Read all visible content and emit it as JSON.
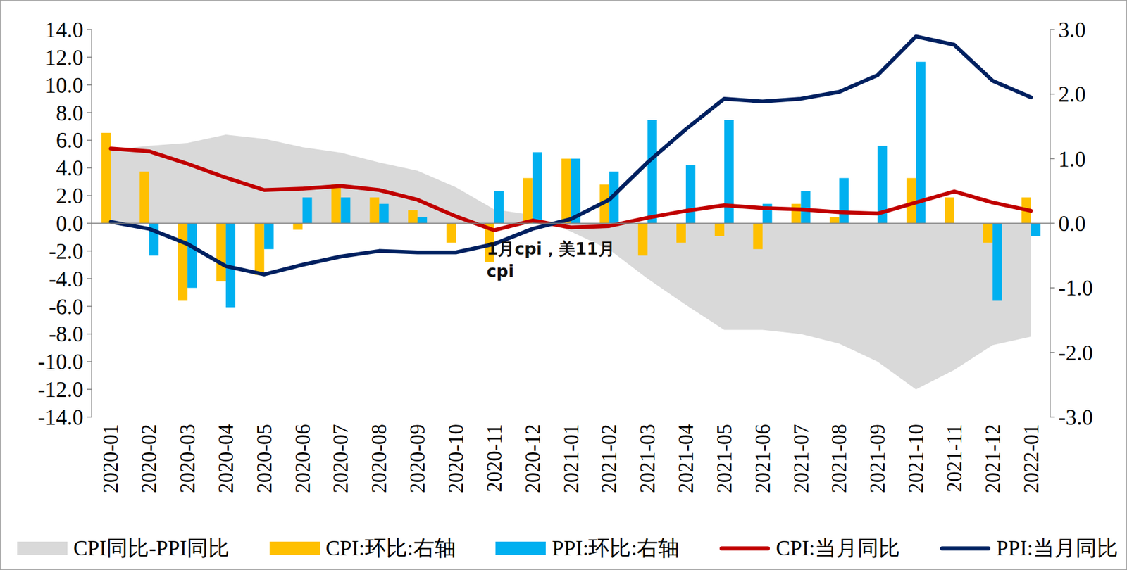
{
  "chart_data": {
    "type": "combo",
    "categories": [
      "2020-01",
      "2020-02",
      "2020-03",
      "2020-04",
      "2020-05",
      "2020-06",
      "2020-07",
      "2020-08",
      "2020-09",
      "2020-10",
      "2020-11",
      "2020-12",
      "2021-01",
      "2021-02",
      "2021-03",
      "2021-04",
      "2021-05",
      "2021-06",
      "2021-07",
      "2021-08",
      "2021-09",
      "2021-10",
      "2021-11",
      "2021-12",
      "2022-01"
    ],
    "series": [
      {
        "name": "CPI同比-PPI同比",
        "type": "area",
        "color": "#d9d9d9",
        "axis": "y",
        "values": [
          5.3,
          5.6,
          5.8,
          6.4,
          6.1,
          5.5,
          5.1,
          4.4,
          3.8,
          2.6,
          1.0,
          0.6,
          -0.6,
          -1.9,
          -4.0,
          -5.9,
          -7.7,
          -7.7,
          -8.0,
          -8.7,
          -10.0,
          -12.0,
          -10.6,
          -8.8,
          -8.2
        ]
      },
      {
        "name": "CPI:环比:右轴",
        "type": "bar",
        "color": "#ffc000",
        "axis": "y2",
        "values": [
          1.4,
          0.8,
          -1.2,
          -0.9,
          -0.8,
          -0.1,
          0.6,
          0.4,
          0.2,
          -0.3,
          -0.6,
          0.7,
          1.0,
          0.6,
          -0.5,
          -0.3,
          -0.2,
          -0.4,
          0.3,
          0.1,
          0.0,
          0.7,
          0.4,
          -0.3,
          0.4
        ]
      },
      {
        "name": "PPI:环比:右轴",
        "type": "bar",
        "color": "#00b0f0",
        "axis": "y2",
        "values": [
          0.0,
          -0.5,
          -1.0,
          -1.3,
          -0.4,
          0.4,
          0.4,
          0.3,
          0.1,
          0.0,
          0.5,
          1.1,
          1.0,
          0.8,
          1.6,
          0.9,
          1.6,
          0.3,
          0.5,
          0.7,
          1.2,
          2.5,
          0.0,
          -1.2,
          -0.2
        ]
      },
      {
        "name": "CPI:当月同比",
        "type": "line",
        "color": "#c00000",
        "axis": "y",
        "values": [
          5.4,
          5.2,
          4.3,
          3.3,
          2.4,
          2.5,
          2.7,
          2.4,
          1.7,
          0.5,
          -0.5,
          0.2,
          -0.3,
          -0.2,
          0.4,
          0.9,
          1.3,
          1.1,
          1.0,
          0.8,
          0.7,
          1.5,
          2.3,
          1.5,
          0.9
        ]
      },
      {
        "name": "PPI:当月同比",
        "type": "line",
        "color": "#002060",
        "axis": "y",
        "values": [
          0.1,
          -0.4,
          -1.5,
          -3.1,
          -3.7,
          -3.0,
          -2.4,
          -2.0,
          -2.1,
          -2.1,
          -1.5,
          -0.4,
          0.3,
          1.7,
          4.4,
          6.8,
          9.0,
          8.8,
          9.0,
          9.5,
          10.7,
          13.5,
          12.9,
          10.3,
          9.1
        ]
      }
    ],
    "ylim": [
      -14,
      14
    ],
    "yticks": [
      {
        "value": -14,
        "label": "-14.0"
      },
      {
        "value": -12,
        "label": "-12.0"
      },
      {
        "value": -10,
        "label": "-10.0"
      },
      {
        "value": -8,
        "label": "-8.0"
      },
      {
        "value": -6,
        "label": "-6.0"
      },
      {
        "value": -4,
        "label": "-4.0"
      },
      {
        "value": -2,
        "label": "-2.0"
      },
      {
        "value": 0,
        "label": "0.0"
      },
      {
        "value": 2,
        "label": "2.0"
      },
      {
        "value": 4,
        "label": "4.0"
      },
      {
        "value": 6,
        "label": "6.0"
      },
      {
        "value": 8,
        "label": "8.0"
      },
      {
        "value": 10,
        "label": "10.0"
      },
      {
        "value": 12,
        "label": "12.0"
      },
      {
        "value": 14,
        "label": "14.0"
      }
    ],
    "y2lim": [
      -3,
      3
    ],
    "y2ticks": [
      {
        "value": -3,
        "label": "-3.0"
      },
      {
        "value": -2,
        "label": "-2.0"
      },
      {
        "value": -1,
        "label": "-1.0"
      },
      {
        "value": 0,
        "label": "0.0"
      },
      {
        "value": 1,
        "label": "1.0"
      },
      {
        "value": 2,
        "label": "2.0"
      },
      {
        "value": 3,
        "label": "3.0"
      }
    ],
    "annotations": [
      "1月cpi，美11月cpi"
    ],
    "grid": false,
    "legend": "bottom"
  }
}
